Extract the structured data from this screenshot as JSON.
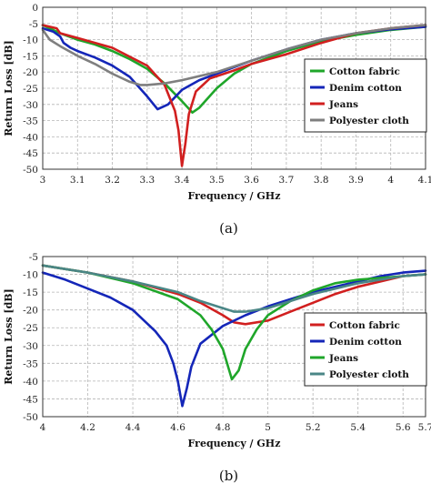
{
  "chart_data": [
    {
      "type": "line",
      "caption": "(a)",
      "xlabel": "Frequency / GHz",
      "ylabel": "Return Loss [dB]",
      "xlim": [
        3,
        4.1
      ],
      "ylim": [
        -50,
        0
      ],
      "xticks": [
        3,
        3.1,
        3.2,
        3.3,
        3.4,
        3.5,
        3.6,
        3.7,
        3.8,
        3.9,
        4,
        4.1
      ],
      "yticks": [
        0,
        -5,
        -10,
        -15,
        -20,
        -25,
        -30,
        -35,
        -40,
        -45,
        -50
      ],
      "grid": true,
      "legend_position": "right",
      "series": [
        {
          "name": "Cotton fabric",
          "color": "#1fa62a",
          "x": [
            3,
            3.05,
            3.1,
            3.15,
            3.2,
            3.25,
            3.3,
            3.35,
            3.4,
            3.43,
            3.45,
            3.5,
            3.55,
            3.6,
            3.7,
            3.8,
            3.9,
            4.0,
            4.1
          ],
          "y": [
            -5.5,
            -8,
            -10,
            -11.5,
            -13.5,
            -16,
            -19,
            -23.5,
            -29,
            -32.5,
            -31,
            -25,
            -20.5,
            -17.5,
            -13.5,
            -10.5,
            -8.5,
            -7,
            -6
          ]
        },
        {
          "name": "Denim cotton",
          "color": "#1426b8",
          "x": [
            3,
            3.03,
            3.05,
            3.06,
            3.08,
            3.1,
            3.15,
            3.2,
            3.25,
            3.3,
            3.33,
            3.36,
            3.4,
            3.45,
            3.5,
            3.6,
            3.7,
            3.8,
            3.9,
            4.0,
            4.1
          ],
          "y": [
            -6.5,
            -7.5,
            -9,
            -11,
            -12.5,
            -13.5,
            -15.5,
            -18,
            -21.5,
            -27.5,
            -31.5,
            -30,
            -25.5,
            -22.5,
            -20.5,
            -16.5,
            -13,
            -10,
            -8,
            -6.8,
            -6
          ]
        },
        {
          "name": "Jeans",
          "color": "#d11f1f",
          "x": [
            3,
            3.04,
            3.05,
            3.1,
            3.2,
            3.3,
            3.35,
            3.38,
            3.39,
            3.4,
            3.41,
            3.42,
            3.44,
            3.48,
            3.55,
            3.6,
            3.7,
            3.8,
            3.9,
            4.0,
            4.1
          ],
          "y": [
            -5.5,
            -6.5,
            -8,
            -9.5,
            -12.5,
            -18,
            -24,
            -32,
            -38,
            -49,
            -42,
            -33,
            -26,
            -22,
            -19.5,
            -17.5,
            -14.5,
            -11,
            -8,
            -6.5,
            -5.5
          ]
        },
        {
          "name": "Polyester cloth",
          "color": "#7f7f7f",
          "x": [
            3,
            3.02,
            3.05,
            3.1,
            3.15,
            3.2,
            3.25,
            3.28,
            3.3,
            3.35,
            3.4,
            3.5,
            3.6,
            3.7,
            3.8,
            3.9,
            4.0,
            4.1
          ],
          "y": [
            -7,
            -10,
            -12,
            -15,
            -17.5,
            -20.5,
            -23,
            -24,
            -24,
            -23.5,
            -22.5,
            -20,
            -16.5,
            -13,
            -10,
            -8,
            -6.5,
            -5.5
          ]
        }
      ]
    },
    {
      "type": "line",
      "caption": "(b)",
      "xlabel": "Frequency / GHz",
      "ylabel": "Return Loss [dB]",
      "xlim": [
        4,
        5.7
      ],
      "ylim": [
        -50,
        -5
      ],
      "xticks": [
        4,
        4.2,
        4.4,
        4.6,
        4.8,
        5,
        5.2,
        5.4,
        5.6,
        5.7
      ],
      "yticks": [
        -5,
        -10,
        -15,
        -20,
        -25,
        -30,
        -35,
        -40,
        -45,
        -50
      ],
      "grid": true,
      "legend_position": "right",
      "series": [
        {
          "name": "Cotton fabric",
          "color": "#d11f1f",
          "x": [
            4.0,
            4.2,
            4.4,
            4.6,
            4.7,
            4.8,
            4.85,
            4.9,
            5.0,
            5.1,
            5.2,
            5.3,
            5.4,
            5.5,
            5.6,
            5.7
          ],
          "y": [
            -7.5,
            -9.5,
            -12,
            -15.5,
            -18,
            -21.5,
            -23.5,
            -24,
            -23,
            -20.5,
            -18,
            -15.5,
            -13.5,
            -12,
            -10.5,
            -10
          ]
        },
        {
          "name": "Denim cotton",
          "color": "#1426b8",
          "x": [
            4.0,
            4.1,
            4.2,
            4.3,
            4.4,
            4.5,
            4.55,
            4.58,
            4.6,
            4.62,
            4.64,
            4.66,
            4.7,
            4.8,
            4.9,
            5.0,
            5.1,
            5.2,
            5.3,
            5.4,
            5.5,
            5.6,
            5.7
          ],
          "y": [
            -9.5,
            -11.5,
            -14,
            -16.5,
            -20,
            -26,
            -30,
            -35,
            -40,
            -47,
            -42,
            -36,
            -29.5,
            -24.5,
            -21.5,
            -19,
            -17,
            -15,
            -13.5,
            -12,
            -10.5,
            -9.5,
            -9
          ]
        },
        {
          "name": "Jeans",
          "color": "#1fa62a",
          "x": [
            4.0,
            4.2,
            4.4,
            4.6,
            4.7,
            4.75,
            4.8,
            4.84,
            4.87,
            4.9,
            4.95,
            5.0,
            5.1,
            5.2,
            5.3,
            5.4,
            5.5,
            5.6,
            5.7
          ],
          "y": [
            -7.5,
            -9.5,
            -12.5,
            -17,
            -21.5,
            -25.5,
            -31,
            -39.5,
            -37,
            -31,
            -25.5,
            -21.5,
            -17.5,
            -14.5,
            -12.5,
            -11.5,
            -11,
            -10.5,
            -10
          ]
        },
        {
          "name": "Polyester cloth",
          "color": "#4a8686",
          "x": [
            4.0,
            4.2,
            4.4,
            4.6,
            4.7,
            4.8,
            4.85,
            4.9,
            5.0,
            5.1,
            5.2,
            5.3,
            5.4,
            5.5,
            5.6,
            5.7
          ],
          "y": [
            -7.5,
            -9.5,
            -12,
            -15,
            -17.5,
            -19.5,
            -20.5,
            -20.5,
            -19.5,
            -17.5,
            -15.5,
            -14,
            -12.5,
            -11.5,
            -10.5,
            -10
          ]
        }
      ]
    }
  ]
}
